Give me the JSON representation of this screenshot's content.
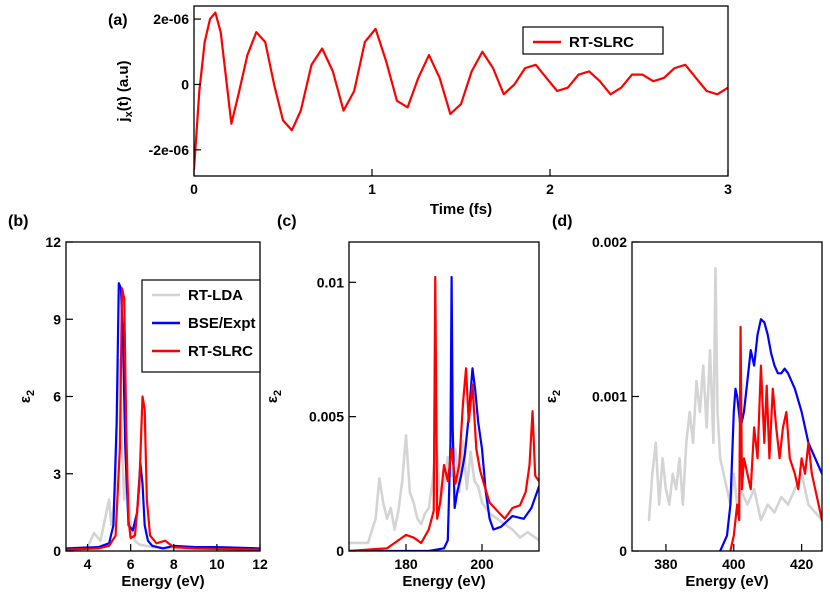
{
  "chart_data": [
    {
      "panel": "(a)",
      "type": "line",
      "xlabel": "Time (fs)",
      "ylabel_main": "j",
      "ylabel_sub": "x",
      "ylabel_rest": "(t) (a.u)",
      "xlim": [
        0,
        3
      ],
      "ylim": [
        -2.8e-06,
        2.4e-06
      ],
      "xticks": [
        0,
        1,
        2,
        3
      ],
      "xtick_labels": [
        "0",
        "1",
        "2",
        "3"
      ],
      "yticks": [
        -2e-06,
        0,
        2e-06
      ],
      "ytick_labels": [
        "-2e-06",
        "0",
        "2e-06"
      ],
      "legend": [
        "RT-SLRC"
      ],
      "legend_position": "top-right",
      "series": [
        {
          "name": "RT-SLRC",
          "color": "#ff0000",
          "x": [
            0.0,
            0.03,
            0.06,
            0.09,
            0.12,
            0.15,
            0.18,
            0.21,
            0.25,
            0.3,
            0.35,
            0.4,
            0.45,
            0.5,
            0.55,
            0.6,
            0.66,
            0.72,
            0.78,
            0.84,
            0.9,
            0.96,
            1.02,
            1.08,
            1.14,
            1.2,
            1.26,
            1.32,
            1.38,
            1.44,
            1.5,
            1.56,
            1.62,
            1.68,
            1.74,
            1.8,
            1.86,
            1.92,
            1.98,
            2.04,
            2.1,
            2.16,
            2.22,
            2.28,
            2.34,
            2.4,
            2.46,
            2.52,
            2.58,
            2.64,
            2.7,
            2.76,
            2.82,
            2.88,
            2.94,
            3.0
          ],
          "values": [
            -2.6e-06,
            -2e-07,
            1.3e-06,
            2e-06,
            2.2e-06,
            1.6e-06,
            2e-07,
            -1.2e-06,
            -3e-07,
            9e-07,
            1.6e-06,
            1.3e-06,
            0.0,
            -1.1e-06,
            -1.4e-06,
            -8e-07,
            6e-07,
            1.1e-06,
            4e-07,
            -8e-07,
            -2e-07,
            1.3e-06,
            1.7e-06,
            7e-07,
            -5e-07,
            -7e-07,
            2e-07,
            9e-07,
            2e-07,
            -9e-07,
            -6e-07,
            4e-07,
            1e-06,
            5e-07,
            -3e-07,
            0.0,
            5e-07,
            6e-07,
            2e-07,
            -2e-07,
            -1e-07,
            3e-07,
            4e-07,
            1e-07,
            -3e-07,
            -1e-07,
            3e-07,
            3e-07,
            1e-07,
            2e-07,
            5e-07,
            6e-07,
            2e-07,
            -2e-07,
            -3e-07,
            -1e-07
          ]
        }
      ]
    },
    {
      "panel": "(b)",
      "type": "line",
      "xlabel": "Energy (eV)",
      "ylabel_main": "ε",
      "ylabel_sub": "2",
      "xlim": [
        3,
        12
      ],
      "ylim": [
        0,
        12
      ],
      "xticks": [
        4,
        6,
        8,
        10,
        12
      ],
      "xtick_labels": [
        "4",
        "6",
        "8",
        "10",
        "12"
      ],
      "yticks": [
        0,
        3,
        6,
        9,
        12
      ],
      "ytick_labels": [
        "0",
        "3",
        "6",
        "9",
        "12"
      ],
      "legend": [
        "RT-LDA",
        "BSE/Expt",
        "RT-SLRC"
      ],
      "legend_position": "top-right",
      "series": [
        {
          "name": "RT-LDA",
          "color": "#d4d4d4",
          "x": [
            3.0,
            4.0,
            4.3,
            4.6,
            4.8,
            5.0,
            5.1,
            5.2,
            5.3,
            5.4,
            5.5,
            5.6,
            5.7,
            5.8,
            5.9,
            6.0,
            6.2,
            6.4,
            7.0,
            8.0,
            12.0
          ],
          "values": [
            0.1,
            0.15,
            0.7,
            0.4,
            1.2,
            2.0,
            1.0,
            1.6,
            2.6,
            6.5,
            7.4,
            4.0,
            2.0,
            3.0,
            2.3,
            1.0,
            0.4,
            0.25,
            0.15,
            0.1,
            0.05
          ]
        },
        {
          "name": "BSE/Expt",
          "color": "#0000ff",
          "x": [
            3.0,
            4.5,
            5.0,
            5.2,
            5.35,
            5.45,
            5.55,
            5.65,
            5.75,
            5.9,
            6.1,
            6.3,
            6.45,
            6.55,
            6.65,
            6.8,
            7.0,
            7.5,
            8.0,
            9.0,
            10.0,
            12.0
          ],
          "values": [
            0.1,
            0.15,
            0.3,
            1.0,
            5.0,
            10.4,
            10.2,
            8.0,
            4.0,
            1.0,
            0.8,
            1.5,
            3.4,
            2.6,
            1.0,
            0.4,
            0.2,
            0.1,
            0.2,
            0.15,
            0.15,
            0.1
          ]
        },
        {
          "name": "RT-SLRC",
          "color": "#ff0000",
          "x": [
            3.0,
            4.5,
            5.0,
            5.3,
            5.5,
            5.6,
            5.7,
            5.8,
            5.9,
            6.0,
            6.2,
            6.4,
            6.55,
            6.65,
            6.75,
            6.9,
            7.2,
            7.6,
            8.0,
            9.0,
            12.0
          ],
          "values": [
            0.05,
            0.1,
            0.2,
            0.6,
            4.0,
            10.2,
            9.8,
            4.5,
            1.2,
            0.5,
            0.6,
            2.5,
            6.0,
            5.5,
            2.0,
            0.6,
            0.3,
            0.4,
            0.15,
            0.1,
            0.05
          ]
        }
      ]
    },
    {
      "panel": "(c)",
      "type": "line",
      "xlabel": "Energy (eV)",
      "ylabel_main": "ε",
      "ylabel_sub": "2",
      "xlim": [
        165,
        215
      ],
      "ylim": [
        0,
        0.0115
      ],
      "xticks": [
        180,
        200
      ],
      "xtick_labels": [
        "180",
        "200"
      ],
      "yticks": [
        0,
        0.005,
        0.01
      ],
      "ytick_labels": [
        "0",
        "0.005",
        "0.01"
      ],
      "series": [
        {
          "name": "RT-LDA",
          "color": "#d4d4d4",
          "x": [
            165,
            170,
            172,
            173,
            174,
            175,
            176,
            177,
            178,
            179,
            180,
            181,
            182,
            183,
            184,
            185,
            186,
            187,
            188,
            189,
            190,
            191,
            192,
            193,
            194,
            195,
            196,
            197,
            198,
            199,
            200,
            202,
            204,
            206,
            208,
            210,
            212,
            215
          ],
          "values": [
            0.0003,
            0.0003,
            0.0012,
            0.0027,
            0.0018,
            0.0012,
            0.0016,
            0.0008,
            0.0015,
            0.0026,
            0.0043,
            0.0022,
            0.0018,
            0.0012,
            0.001,
            0.0014,
            0.0016,
            0.0026,
            0.0041,
            0.0018,
            0.0024,
            0.0035,
            0.0028,
            0.0038,
            0.0022,
            0.0041,
            0.0023,
            0.0037,
            0.0026,
            0.0024,
            0.0018,
            0.0014,
            0.0012,
            0.001,
            0.0008,
            0.0005,
            0.0007,
            0.0004
          ]
        },
        {
          "name": "BSE/Expt",
          "color": "#0000ff",
          "x": [
            165,
            186,
            190,
            191,
            191.7,
            192.0,
            192.3,
            192.8,
            193.5,
            194.5,
            195.5,
            196.5,
            197.5,
            198.2,
            199.0,
            200.0,
            201.0,
            202.0,
            203.0,
            205.0,
            208.0,
            211.0,
            213.0,
            215.0
          ],
          "values": [
            0.0,
            0.0,
            0.0001,
            0.0004,
            0.004,
            0.0102,
            0.0045,
            0.0016,
            0.0022,
            0.0028,
            0.0036,
            0.005,
            0.0068,
            0.006,
            0.0048,
            0.0038,
            0.0022,
            0.0012,
            0.0008,
            0.0009,
            0.0013,
            0.0012,
            0.0016,
            0.0024
          ]
        },
        {
          "name": "RT-SLRC",
          "color": "#ff0000",
          "x": [
            165,
            175,
            178,
            180,
            182,
            184,
            186,
            187.3,
            187.7,
            188.2,
            189,
            190,
            191,
            192,
            193,
            194,
            195,
            195.8,
            196.5,
            197.5,
            198.5,
            199.5,
            200.5,
            202,
            204,
            206,
            208,
            210,
            211.5,
            212.5,
            213.3,
            214,
            215
          ],
          "values": [
            0.0,
            0.0001,
            0.0004,
            0.0006,
            0.0005,
            0.0003,
            0.0008,
            0.0015,
            0.0102,
            0.0012,
            0.0018,
            0.0032,
            0.0026,
            0.0038,
            0.0025,
            0.0032,
            0.0055,
            0.0068,
            0.0048,
            0.0062,
            0.0038,
            0.003,
            0.0025,
            0.0018,
            0.0015,
            0.0012,
            0.0016,
            0.0017,
            0.0022,
            0.0032,
            0.0052,
            0.0028,
            0.0026
          ]
        }
      ]
    },
    {
      "panel": "(d)",
      "type": "line",
      "xlabel": "Energy (eV)",
      "ylabel_main": "ε",
      "ylabel_sub": "2",
      "xlim": [
        370,
        426
      ],
      "ylim": [
        0,
        0.002
      ],
      "xticks": [
        380,
        400,
        420
      ],
      "xtick_labels": [
        "380",
        "400",
        "420"
      ],
      "yticks": [
        0,
        0.001,
        0.002
      ],
      "ytick_labels": [
        "0",
        "0.001",
        "0.002"
      ],
      "series": [
        {
          "name": "RT-LDA",
          "color": "#d4d4d4",
          "x": [
            375,
            376,
            377,
            378,
            379,
            380,
            381,
            382,
            383,
            384,
            385,
            386,
            387,
            388,
            389,
            390,
            391,
            392,
            393,
            394,
            394.6,
            395.2,
            396,
            397,
            398,
            399,
            400,
            401,
            402,
            404,
            406,
            408,
            410,
            412,
            414,
            416,
            418,
            420,
            422,
            424,
            426
          ],
          "values": [
            0.0002,
            0.0005,
            0.0007,
            0.0003,
            0.0006,
            0.0004,
            0.0003,
            0.0005,
            0.0004,
            0.0006,
            0.0003,
            0.0007,
            0.0009,
            0.0007,
            0.0011,
            0.0009,
            0.0012,
            0.0008,
            0.0013,
            0.0007,
            0.00183,
            0.0009,
            0.0006,
            0.0005,
            0.0004,
            0.0003,
            0.0005,
            0.0003,
            0.0004,
            0.0003,
            0.0004,
            0.0002,
            0.0003,
            0.00025,
            0.00035,
            0.0003,
            0.0004,
            0.0005,
            0.0003,
            0.00025,
            0.0002
          ]
        },
        {
          "name": "BSE/Expt",
          "color": "#0000ff",
          "x": [
            396,
            398,
            399,
            400,
            400.5,
            401,
            402,
            403,
            404,
            405,
            406,
            407,
            408,
            409,
            410,
            411,
            412,
            413,
            414,
            415,
            416,
            418,
            420,
            422,
            424,
            426
          ],
          "values": [
            0.0,
            0.0001,
            0.0003,
            0.0009,
            0.00105,
            0.001,
            0.0008,
            0.0009,
            0.0011,
            0.0013,
            0.0012,
            0.0014,
            0.0015,
            0.00148,
            0.0014,
            0.00128,
            0.0012,
            0.00115,
            0.00115,
            0.00118,
            0.00115,
            0.00105,
            0.0009,
            0.0007,
            0.0006,
            0.0005
          ]
        },
        {
          "name": "RT-SLRC",
          "color": "#ff0000",
          "x": [
            399,
            400,
            401,
            401.6,
            402,
            402.4,
            403,
            404,
            405,
            406,
            407,
            408,
            409,
            409.7,
            410.5,
            411.5,
            412.5,
            413.5,
            414.5,
            415.5,
            416.5,
            418,
            419,
            420,
            421,
            422,
            423,
            424,
            425,
            426
          ],
          "values": [
            0.0,
            0.0001,
            0.0003,
            0.0002,
            0.00145,
            0.0004,
            0.0006,
            0.0005,
            0.0004,
            0.0008,
            0.0006,
            0.0012,
            0.0007,
            0.00107,
            0.0006,
            0.00105,
            0.0008,
            0.0006,
            0.0008,
            0.0009,
            0.0006,
            0.0005,
            0.0004,
            0.0006,
            0.0005,
            0.0007,
            0.0005,
            0.0004,
            0.0003,
            0.0002
          ]
        }
      ]
    }
  ]
}
